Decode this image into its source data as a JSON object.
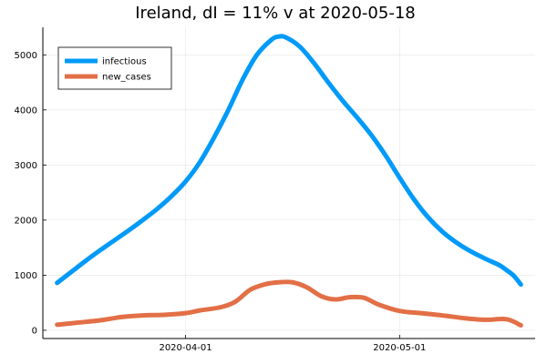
{
  "chart_data": {
    "type": "line",
    "title": "Ireland,  dI = 11% v at 2020-05-18",
    "xlabel": "",
    "ylabel": "",
    "x_start": "2020-03-14",
    "x_end": "2020-05-18",
    "xlim": [
      "2020-03-12",
      "2020-05-20"
    ],
    "ylim": [
      -150,
      5500
    ],
    "x_ticks": [
      {
        "date": "2020-04-01",
        "label": "2020-04-01"
      },
      {
        "date": "2020-05-01",
        "label": "2020-05-01"
      }
    ],
    "y_ticks": [
      0,
      1000,
      2000,
      3000,
      4000,
      5000
    ],
    "grid": true,
    "legend": "top-left",
    "series": [
      {
        "name": "infectious",
        "color": "#009AF9",
        "points": [
          {
            "x": "2020-03-14",
            "y": 860
          },
          {
            "x": "2020-03-16",
            "y": 1060
          },
          {
            "x": "2020-03-18",
            "y": 1260
          },
          {
            "x": "2020-03-20",
            "y": 1450
          },
          {
            "x": "2020-03-22",
            "y": 1630
          },
          {
            "x": "2020-03-24",
            "y": 1810
          },
          {
            "x": "2020-03-26",
            "y": 2000
          },
          {
            "x": "2020-03-28",
            "y": 2200
          },
          {
            "x": "2020-03-30",
            "y": 2430
          },
          {
            "x": "2020-04-01",
            "y": 2700
          },
          {
            "x": "2020-04-03",
            "y": 3050
          },
          {
            "x": "2020-04-05",
            "y": 3500
          },
          {
            "x": "2020-04-07",
            "y": 4000
          },
          {
            "x": "2020-04-09",
            "y": 4550
          },
          {
            "x": "2020-04-11",
            "y": 5000
          },
          {
            "x": "2020-04-13",
            "y": 5270
          },
          {
            "x": "2020-04-14",
            "y": 5330
          },
          {
            "x": "2020-04-15",
            "y": 5320
          },
          {
            "x": "2020-04-17",
            "y": 5150
          },
          {
            "x": "2020-04-19",
            "y": 4850
          },
          {
            "x": "2020-04-21",
            "y": 4500
          },
          {
            "x": "2020-04-23",
            "y": 4170
          },
          {
            "x": "2020-04-25",
            "y": 3870
          },
          {
            "x": "2020-04-27",
            "y": 3550
          },
          {
            "x": "2020-04-29",
            "y": 3180
          },
          {
            "x": "2020-05-01",
            "y": 2770
          },
          {
            "x": "2020-05-03",
            "y": 2380
          },
          {
            "x": "2020-05-05",
            "y": 2050
          },
          {
            "x": "2020-05-07",
            "y": 1790
          },
          {
            "x": "2020-05-09",
            "y": 1590
          },
          {
            "x": "2020-05-11",
            "y": 1430
          },
          {
            "x": "2020-05-13",
            "y": 1300
          },
          {
            "x": "2020-05-15",
            "y": 1180
          },
          {
            "x": "2020-05-16",
            "y": 1090
          },
          {
            "x": "2020-05-17",
            "y": 990
          },
          {
            "x": "2020-05-18",
            "y": 830
          }
        ]
      },
      {
        "name": "new_cases",
        "color": "#E26F46",
        "points": [
          {
            "x": "2020-03-14",
            "y": 100
          },
          {
            "x": "2020-03-17",
            "y": 140
          },
          {
            "x": "2020-03-20",
            "y": 180
          },
          {
            "x": "2020-03-23",
            "y": 240
          },
          {
            "x": "2020-03-26",
            "y": 270
          },
          {
            "x": "2020-03-29",
            "y": 280
          },
          {
            "x": "2020-04-01",
            "y": 310
          },
          {
            "x": "2020-04-03",
            "y": 360
          },
          {
            "x": "2020-04-06",
            "y": 420
          },
          {
            "x": "2020-04-08",
            "y": 520
          },
          {
            "x": "2020-04-10",
            "y": 730
          },
          {
            "x": "2020-04-12",
            "y": 830
          },
          {
            "x": "2020-04-14",
            "y": 870
          },
          {
            "x": "2020-04-16",
            "y": 870
          },
          {
            "x": "2020-04-18",
            "y": 780
          },
          {
            "x": "2020-04-20",
            "y": 620
          },
          {
            "x": "2020-04-22",
            "y": 560
          },
          {
            "x": "2020-04-24",
            "y": 600
          },
          {
            "x": "2020-04-26",
            "y": 590
          },
          {
            "x": "2020-04-28",
            "y": 470
          },
          {
            "x": "2020-05-01",
            "y": 350
          },
          {
            "x": "2020-05-04",
            "y": 310
          },
          {
            "x": "2020-05-07",
            "y": 270
          },
          {
            "x": "2020-05-10",
            "y": 220
          },
          {
            "x": "2020-05-13",
            "y": 190
          },
          {
            "x": "2020-05-16",
            "y": 200
          },
          {
            "x": "2020-05-18",
            "y": 90
          }
        ]
      }
    ]
  }
}
